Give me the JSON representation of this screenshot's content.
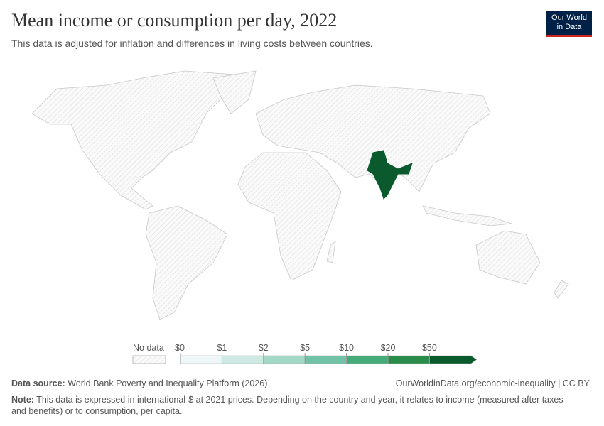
{
  "header": {
    "title": "Mean income or consumption per day, 2022",
    "subtitle": "This data is adjusted for inflation and differences in living costs between countries.",
    "logo": [
      "Our World",
      "in Data"
    ]
  },
  "legend": {
    "no_data": "No data",
    "ticks": [
      {
        "value": 0,
        "label": "$0"
      },
      {
        "value": 1,
        "label": "$1"
      },
      {
        "value": 2,
        "label": "$2"
      },
      {
        "value": 5,
        "label": "$5"
      },
      {
        "value": 10,
        "label": "$10"
      },
      {
        "value": 20,
        "label": "$20"
      },
      {
        "value": 50,
        "label": "$50"
      }
    ],
    "colors": [
      "#eef7f8",
      "#cdeae2",
      "#a1d8c6",
      "#6fc2a6",
      "#45ac79",
      "#2a8c4a",
      "#0b5a2d"
    ]
  },
  "footer": {
    "source_label": "Data source:",
    "source": "World Bank Poverty and Inequality Platform (2026)",
    "url": "OurWorldinData.org/economic-inequality | CC BY",
    "note_label": "Note:",
    "note": "This data is expressed in international-$ at 2021 prices. Depending on the country and year, it relates to income (measured after taxes and benefits) or to consumption, per capita."
  }
}
